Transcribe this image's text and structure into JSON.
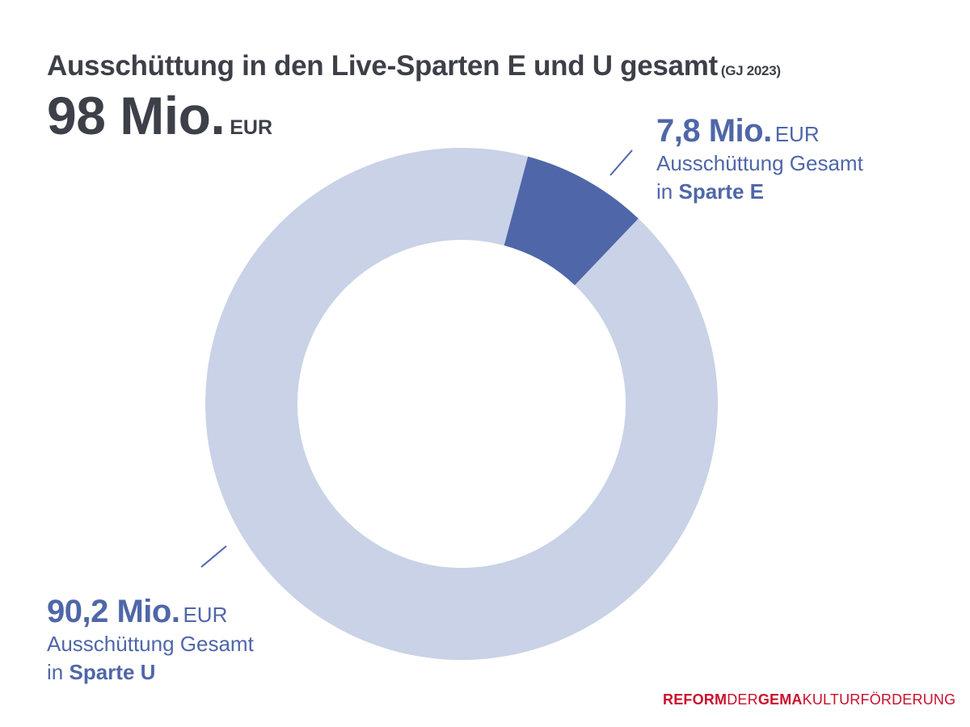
{
  "title": {
    "main": "Ausschüttung in den Live-Sparten E und U gesamt",
    "sub": "(GJ 2023)"
  },
  "total": {
    "value": "98 Mio.",
    "unit": "EUR"
  },
  "colors": {
    "sparte_e": "#4f67a8",
    "sparte_u": "#c9d2e6",
    "text_dark": "#3d4048",
    "brand_red": "#c8102e"
  },
  "chart_data": {
    "type": "pie",
    "variant": "donut",
    "title": "Ausschüttung in den Live-Sparten E und U gesamt (GJ 2023)",
    "unit": "Mio. EUR",
    "total": 98,
    "slices": [
      {
        "name": "Sparte E",
        "value": 7.8,
        "color": "#4f67a8"
      },
      {
        "name": "Sparte U",
        "value": 90.2,
        "color": "#c9d2e6"
      }
    ]
  },
  "labels": {
    "e": {
      "value": "7,8 Mio.",
      "unit": "EUR",
      "line1": "Ausschüttung Gesamt",
      "prefix": "in",
      "sparte": "Sparte E"
    },
    "u": {
      "value": "90,2 Mio.",
      "unit": "EUR",
      "line1": "Ausschüttung Gesamt",
      "prefix": "in",
      "sparte": "Sparte U"
    }
  },
  "footer": {
    "part1": "REFORM",
    "part2": "DER",
    "part3": "GEMA",
    "part4": "KULTURFÖRDERUNG"
  }
}
